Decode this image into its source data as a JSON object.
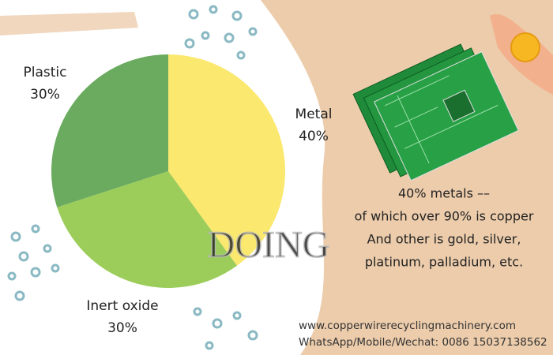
{
  "chart_data": {
    "type": "pie",
    "categories": [
      "Metal",
      "Inert oxide",
      "Plastic"
    ],
    "values": [
      40,
      30,
      30
    ],
    "value_labels": [
      "40%",
      "30%",
      "30%"
    ],
    "colors": [
      "#fbe86e",
      "#9ccd5b",
      "#6aab5f"
    ]
  },
  "watermark": "DOING",
  "notes": [
    "40% metals ––",
    "of which over 90% is copper",
    "And other is gold, silver,",
    "platinum, palladium, etc."
  ],
  "footer": {
    "website": "www.copperwirerecyclingmachinery.com",
    "contact": "WhatsApp/Mobile/Wechat: 0086 15037138562"
  }
}
